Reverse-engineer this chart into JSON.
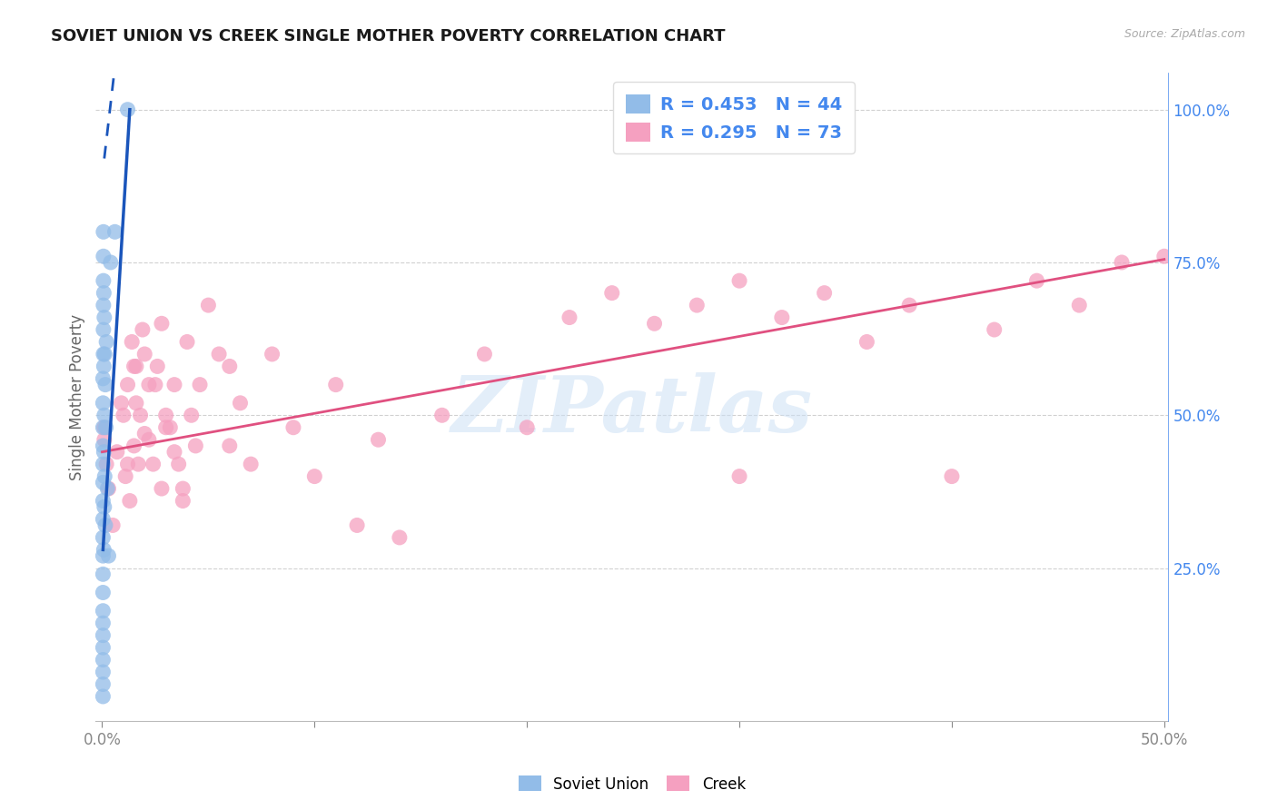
{
  "title": "SOVIET UNION VS CREEK SINGLE MOTHER POVERTY CORRELATION CHART",
  "source": "Source: ZipAtlas.com",
  "ylabel": "Single Mother Poverty",
  "xlim": [
    -0.003,
    0.502
  ],
  "ylim": [
    0.0,
    1.06
  ],
  "soviet_color": "#92bce8",
  "creek_color": "#f5a0c0",
  "soviet_line_color": "#1a55bb",
  "creek_line_color": "#e05080",
  "background_color": "#ffffff",
  "grid_color": "#cccccc",
  "title_color": "#1a1a1a",
  "right_tick_color": "#4488ee",
  "legend_text_color": "#4488ee",
  "watermark": "ZIPatlas",
  "soviet_R": 0.453,
  "soviet_N": 44,
  "creek_R": 0.295,
  "creek_N": 73,
  "creek_trend_x0": 0.0,
  "creek_trend_y0": 0.44,
  "creek_trend_x1": 0.5,
  "creek_trend_y1": 0.755,
  "soviet_trend_solid_x0": 0.0004,
  "soviet_trend_solid_y0": 0.28,
  "soviet_trend_solid_x1": 0.013,
  "soviet_trend_solid_y1": 1.0,
  "soviet_trend_dash_x0": 0.001,
  "soviet_trend_dash_y0": 0.92,
  "soviet_trend_dash_x1": 0.006,
  "soviet_trend_dash_y1": 1.07,
  "soviet_x": [
    0.0004,
    0.0004,
    0.0004,
    0.0004,
    0.0004,
    0.0004,
    0.0004,
    0.0004,
    0.0004,
    0.0004,
    0.0004,
    0.0004,
    0.0004,
    0.0004,
    0.0004,
    0.0004,
    0.0004,
    0.0004,
    0.0004,
    0.0004,
    0.0006,
    0.0006,
    0.0006,
    0.0006,
    0.0006,
    0.0006,
    0.0008,
    0.0008,
    0.0008,
    0.0008,
    0.001,
    0.001,
    0.001,
    0.0012,
    0.0012,
    0.0015,
    0.0015,
    0.0018,
    0.002,
    0.0025,
    0.003,
    0.004,
    0.006,
    0.012
  ],
  "soviet_y": [
    0.04,
    0.06,
    0.08,
    0.1,
    0.12,
    0.14,
    0.16,
    0.18,
    0.21,
    0.24,
    0.27,
    0.3,
    0.33,
    0.36,
    0.39,
    0.42,
    0.45,
    0.48,
    0.52,
    0.56,
    0.6,
    0.64,
    0.68,
    0.72,
    0.76,
    0.8,
    0.28,
    0.44,
    0.58,
    0.7,
    0.35,
    0.5,
    0.66,
    0.4,
    0.6,
    0.32,
    0.55,
    0.48,
    0.62,
    0.38,
    0.27,
    0.75,
    0.8,
    1.0
  ],
  "creek_x": [
    0.001,
    0.001,
    0.002,
    0.003,
    0.005,
    0.007,
    0.009,
    0.011,
    0.012,
    0.013,
    0.014,
    0.015,
    0.016,
    0.017,
    0.018,
    0.019,
    0.02,
    0.022,
    0.024,
    0.026,
    0.028,
    0.03,
    0.032,
    0.034,
    0.036,
    0.038,
    0.04,
    0.042,
    0.044,
    0.046,
    0.05,
    0.055,
    0.06,
    0.065,
    0.07,
    0.08,
    0.09,
    0.1,
    0.11,
    0.12,
    0.13,
    0.14,
    0.16,
    0.18,
    0.2,
    0.22,
    0.24,
    0.26,
    0.28,
    0.3,
    0.32,
    0.34,
    0.36,
    0.38,
    0.4,
    0.42,
    0.44,
    0.46,
    0.48,
    0.5,
    0.015,
    0.02,
    0.025,
    0.03,
    0.01,
    0.012,
    0.016,
    0.022,
    0.028,
    0.034,
    0.038,
    0.06,
    0.3
  ],
  "creek_y": [
    0.46,
    0.48,
    0.42,
    0.38,
    0.32,
    0.44,
    0.52,
    0.4,
    0.55,
    0.36,
    0.62,
    0.45,
    0.58,
    0.42,
    0.5,
    0.64,
    0.47,
    0.55,
    0.42,
    0.58,
    0.65,
    0.5,
    0.48,
    0.55,
    0.42,
    0.38,
    0.62,
    0.5,
    0.45,
    0.55,
    0.68,
    0.6,
    0.58,
    0.52,
    0.42,
    0.6,
    0.48,
    0.4,
    0.55,
    0.32,
    0.46,
    0.3,
    0.5,
    0.6,
    0.48,
    0.66,
    0.7,
    0.65,
    0.68,
    0.72,
    0.66,
    0.7,
    0.62,
    0.68,
    0.4,
    0.64,
    0.72,
    0.68,
    0.75,
    0.76,
    0.58,
    0.6,
    0.55,
    0.48,
    0.5,
    0.42,
    0.52,
    0.46,
    0.38,
    0.44,
    0.36,
    0.45,
    0.4
  ]
}
